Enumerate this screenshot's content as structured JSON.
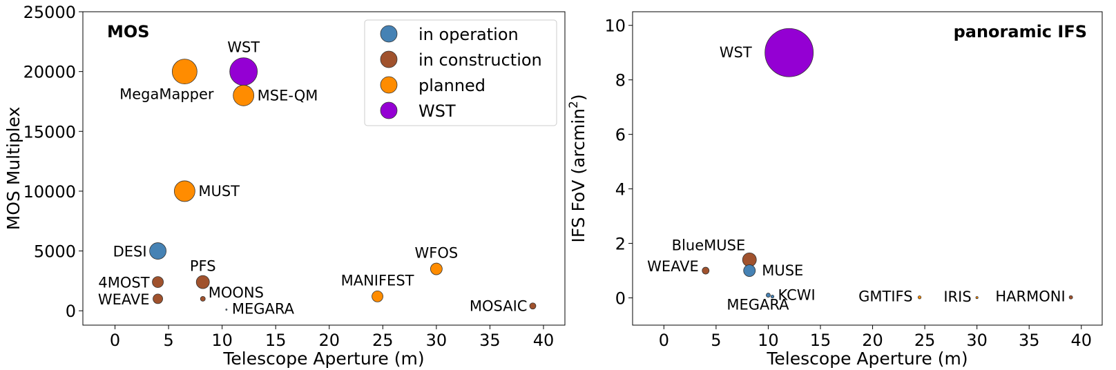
{
  "colors": {
    "in_operation": "#4682B4",
    "in_construction": "#A0522D",
    "planned": "#FF8C00",
    "WST": "#9400D3"
  },
  "chart_data": [
    {
      "type": "scatter",
      "panel_label": "MOS",
      "xlabel": "Telescope Aperture (m)",
      "ylabel": "MOS Multiplex",
      "xlim": [
        -3,
        42
      ],
      "ylim": [
        -1200,
        25000
      ],
      "xticks": [
        0,
        5,
        10,
        15,
        20,
        25,
        30,
        35,
        40
      ],
      "xtick_labels": [
        "0",
        "5",
        "10",
        "15",
        "20",
        "25",
        "30",
        "35",
        "40"
      ],
      "yticks": [
        0,
        5000,
        10000,
        15000,
        20000,
        25000
      ],
      "ytick_labels": [
        "0",
        "5000",
        "10000",
        "15000",
        "20000",
        "25000"
      ],
      "legend": {
        "position": "upper-right",
        "entries": [
          {
            "label": "in operation",
            "status": "in_operation"
          },
          {
            "label": "in construction",
            "status": "in_construction"
          },
          {
            "label": "planned",
            "status": "planned"
          },
          {
            "label": "WST",
            "status": "WST"
          }
        ]
      },
      "points": [
        {
          "name": "DESI",
          "x": 4.0,
          "y": 5000,
          "status": "in_operation",
          "label_side": "left"
        },
        {
          "name": "4MOST",
          "x": 4.0,
          "y": 2400,
          "status": "in_construction",
          "label_side": "left"
        },
        {
          "name": "WEAVE",
          "x": 4.0,
          "y": 1000,
          "status": "in_construction",
          "label_side": "left"
        },
        {
          "name": "PFS",
          "x": 8.2,
          "y": 2400,
          "status": "in_construction",
          "label_side": "above"
        },
        {
          "name": "MOONS",
          "x": 8.2,
          "y": 1000,
          "status": "in_construction",
          "label_side": "right"
        },
        {
          "name": "MEGARA",
          "x": 10.4,
          "y": 100,
          "status": "in_operation",
          "label_side": "right"
        },
        {
          "name": "MegaMapper",
          "x": 6.5,
          "y": 20000,
          "status": "planned",
          "label_side": "below-left"
        },
        {
          "name": "WST",
          "x": 12.0,
          "y": 20000,
          "status": "WST",
          "label_side": "above"
        },
        {
          "name": "MSE-QM",
          "x": 12.0,
          "y": 18000,
          "status": "planned",
          "label_side": "right"
        },
        {
          "name": "MUST",
          "x": 6.5,
          "y": 10000,
          "status": "planned",
          "label_side": "right"
        },
        {
          "name": "MANIFEST",
          "x": 24.5,
          "y": 1200,
          "status": "planned",
          "label_side": "above"
        },
        {
          "name": "WFOS",
          "x": 30.0,
          "y": 3500,
          "status": "planned",
          "label_side": "above"
        },
        {
          "name": "MOSAIC",
          "x": 39.0,
          "y": 400,
          "status": "in_construction",
          "label_side": "left"
        }
      ]
    },
    {
      "type": "scatter",
      "panel_label": "panoramic IFS",
      "xlabel": "Telescope Aperture (m)",
      "ylabel": "IFS FoV (arcmin",
      "ylabel_sup": "2",
      "ylabel_end": ")",
      "xlim": [
        -3,
        42
      ],
      "ylim": [
        -1.0,
        10.5
      ],
      "xticks": [
        0,
        5,
        10,
        15,
        20,
        25,
        30,
        35,
        40
      ],
      "xtick_labels": [
        "0",
        "5",
        "10",
        "15",
        "20",
        "25",
        "30",
        "35",
        "40"
      ],
      "yticks": [
        0,
        2,
        4,
        6,
        8,
        10
      ],
      "ytick_labels": [
        "0",
        "2",
        "4",
        "6",
        "8",
        "10"
      ],
      "points": [
        {
          "name": "WST",
          "x": 12.0,
          "y": 9.0,
          "status": "WST",
          "label_side": "left"
        },
        {
          "name": "BlueMUSE",
          "x": 8.2,
          "y": 1.4,
          "status": "in_construction",
          "label_side": "above-left"
        },
        {
          "name": "MUSE",
          "x": 8.2,
          "y": 1.0,
          "status": "in_operation",
          "label_side": "right"
        },
        {
          "name": "WEAVE",
          "x": 4.0,
          "y": 1.0,
          "status": "in_construction",
          "label_side": "left"
        },
        {
          "name": "MEGARA",
          "x": 10.0,
          "y": 0.1,
          "status": "in_operation",
          "label_side": "below-left"
        },
        {
          "name": "KCWI",
          "x": 10.4,
          "y": 0.05,
          "status": "in_operation",
          "label_side": "right"
        },
        {
          "name": "GMTIFS",
          "x": 24.5,
          "y": 0.02,
          "status": "planned",
          "label_side": "left"
        },
        {
          "name": "IRIS",
          "x": 30.0,
          "y": 0.01,
          "status": "planned",
          "label_side": "left"
        },
        {
          "name": "HARMONI",
          "x": 39.0,
          "y": 0.02,
          "status": "in_construction",
          "label_side": "left"
        }
      ]
    }
  ]
}
